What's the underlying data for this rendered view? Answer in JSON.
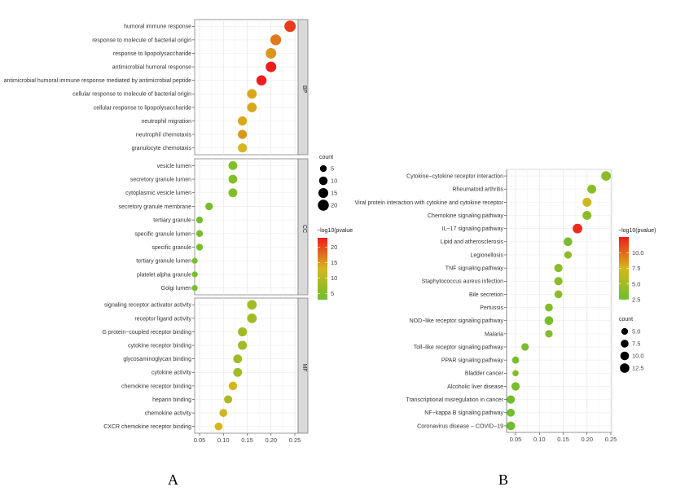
{
  "chart_data": [
    {
      "id": "A",
      "type": "scatter",
      "subtype": "dot-plot (GO enrichment)",
      "panel_label": "A",
      "xlabel": "",
      "ylabel": "",
      "xlim": [
        0.035,
        0.265
      ],
      "xticks": [
        0.05,
        0.1,
        0.15,
        0.2,
        0.25
      ],
      "xtick_labels": [
        "0.05",
        "0.10",
        "0.15",
        "0.20",
        "0.25"
      ],
      "grid": true,
      "facets": [
        {
          "name": "BP",
          "points": [
            {
              "term": "humoral immune response",
              "x": 0.24,
              "count": 22,
              "neglog10p": 21
            },
            {
              "term": "response to molecule of bacterial origin",
              "x": 0.21,
              "count": 19,
              "neglog10p": 17
            },
            {
              "term": "response to lipopolysaccharide",
              "x": 0.2,
              "count": 18,
              "neglog10p": 15
            },
            {
              "term": "antimicrobial humoral response",
              "x": 0.2,
              "count": 18,
              "neglog10p": 23
            },
            {
              "term": "antimicrobial humoral immune response mediated by antimicrobial peptide",
              "x": 0.18,
              "count": 16,
              "neglog10p": 23
            },
            {
              "term": "cellular response to molecule of bacterial origin",
              "x": 0.16,
              "count": 14,
              "neglog10p": 14
            },
            {
              "term": "cellular response to lipopolysaccharide",
              "x": 0.16,
              "count": 14,
              "neglog10p": 14
            },
            {
              "term": "neutrophil migration",
              "x": 0.14,
              "count": 12,
              "neglog10p": 14
            },
            {
              "term": "neutrophil chemotaxis",
              "x": 0.14,
              "count": 12,
              "neglog10p": 15
            },
            {
              "term": "granulocyte chemotaxis",
              "x": 0.14,
              "count": 12,
              "neglog10p": 13
            }
          ]
        },
        {
          "name": "CC",
          "points": [
            {
              "term": "vesicle lumen",
              "x": 0.12,
              "count": 11,
              "neglog10p": 5
            },
            {
              "term": "secretory granule lumen",
              "x": 0.12,
              "count": 11,
              "neglog10p": 5
            },
            {
              "term": "cytoplasmic vesicle lumen",
              "x": 0.12,
              "count": 11,
              "neglog10p": 5
            },
            {
              "term": "secretory granule membrane",
              "x": 0.07,
              "count": 7,
              "neglog10p": 4
            },
            {
              "term": "tertiary granule",
              "x": 0.05,
              "count": 5,
              "neglog10p": 4
            },
            {
              "term": "specific granule lumen",
              "x": 0.05,
              "count": 5,
              "neglog10p": 4
            },
            {
              "term": "specific granule",
              "x": 0.05,
              "count": 5,
              "neglog10p": 4
            },
            {
              "term": "tertiary granule lumen",
              "x": 0.04,
              "count": 3,
              "neglog10p": 4
            },
            {
              "term": "platelet alpha granule",
              "x": 0.04,
              "count": 3,
              "neglog10p": 4
            },
            {
              "term": "Golgi lumen",
              "x": 0.04,
              "count": 3,
              "neglog10p": 4
            }
          ]
        },
        {
          "name": "MF",
          "points": [
            {
              "term": "signaling receptor activator activity",
              "x": 0.16,
              "count": 14,
              "neglog10p": 8
            },
            {
              "term": "receptor ligand activity",
              "x": 0.16,
              "count": 14,
              "neglog10p": 8
            },
            {
              "term": "G protein−coupled receptor binding",
              "x": 0.14,
              "count": 12,
              "neglog10p": 8
            },
            {
              "term": "cytokine receptor binding",
              "x": 0.14,
              "count": 12,
              "neglog10p": 8
            },
            {
              "term": "glycosaminoglycan binding",
              "x": 0.13,
              "count": 11,
              "neglog10p": 8
            },
            {
              "term": "cytokine activity",
              "x": 0.13,
              "count": 11,
              "neglog10p": 8
            },
            {
              "term": "chemokine receptor binding",
              "x": 0.12,
              "count": 10,
              "neglog10p": 13
            },
            {
              "term": "heparin binding",
              "x": 0.11,
              "count": 9,
              "neglog10p": 9
            },
            {
              "term": "chemokine activity",
              "x": 0.1,
              "count": 8,
              "neglog10p": 12
            },
            {
              "term": "CXCR chemokine receptor binding",
              "x": 0.09,
              "count": 8,
              "neglog10p": 13
            }
          ]
        }
      ],
      "legend_size": {
        "title": "count",
        "values": [
          5,
          10,
          15,
          20
        ],
        "labels": [
          "5",
          "10",
          "15",
          "20"
        ],
        "position": "right"
      },
      "legend_color": {
        "title": "−log10(pvalue",
        "range": [
          3,
          23
        ],
        "ticks": [
          20,
          15,
          10,
          5
        ],
        "tick_labels": [
          "20",
          "15",
          "10",
          "5"
        ],
        "low_color": "#6dbf2e",
        "mid_color": "#d6b61c",
        "high_color": "#ee1c1c",
        "position": "right"
      }
    },
    {
      "id": "B",
      "type": "scatter",
      "subtype": "dot-plot (KEGG enrichment)",
      "panel_label": "B",
      "xlabel": "",
      "ylabel": "",
      "xlim": [
        0.035,
        0.25
      ],
      "xticks": [
        0.05,
        0.1,
        0.15,
        0.2,
        0.25
      ],
      "xtick_labels": [
        "0.05",
        "0.10",
        "0.15",
        "0.20",
        "0.25"
      ],
      "grid": true,
      "points": [
        {
          "term": "Cytokine−cytokine receptor interaction",
          "x": 0.24,
          "count": 13,
          "neglog10p": 4
        },
        {
          "term": "Rheumatoid arthritis",
          "x": 0.21,
          "count": 11,
          "neglog10p": 4
        },
        {
          "term": "Viral protein interaction with cytokine and cytokine receptor",
          "x": 0.2,
          "count": 11,
          "neglog10p": 7
        },
        {
          "term": "Chemokine signaling pathway",
          "x": 0.2,
          "count": 11,
          "neglog10p": 4
        },
        {
          "term": "IL−17 signaling pathway",
          "x": 0.18,
          "count": 13,
          "neglog10p": 12
        },
        {
          "term": "Lipid and atherosclerosis",
          "x": 0.16,
          "count": 10,
          "neglog10p": 3
        },
        {
          "term": "Legionellosis",
          "x": 0.16,
          "count": 7,
          "neglog10p": 4
        },
        {
          "term": "TNF signaling pathway",
          "x": 0.14,
          "count": 9,
          "neglog10p": 4
        },
        {
          "term": "Staphylococcus aureus infection",
          "x": 0.14,
          "count": 9,
          "neglog10p": 4
        },
        {
          "term": "Bile secretion",
          "x": 0.14,
          "count": 8,
          "neglog10p": 4
        },
        {
          "term": "Pertussis",
          "x": 0.12,
          "count": 8,
          "neglog10p": 3.5
        },
        {
          "term": "NOD−like receptor signaling pathway",
          "x": 0.12,
          "count": 10,
          "neglog10p": 3
        },
        {
          "term": "Malaria",
          "x": 0.12,
          "count": 7,
          "neglog10p": 3.5
        },
        {
          "term": "Toll−like receptor signaling pathway",
          "x": 0.07,
          "count": 7,
          "neglog10p": 3
        },
        {
          "term": "PPAR signaling pathway",
          "x": 0.05,
          "count": 6,
          "neglog10p": 3
        },
        {
          "term": "Bladder cancer",
          "x": 0.05,
          "count": 4,
          "neglog10p": 3.5
        },
        {
          "term": "Alcoholic liver disease",
          "x": 0.05,
          "count": 9,
          "neglog10p": 3
        },
        {
          "term": "Transcriptional misregulation in cancer",
          "x": 0.04,
          "count": 9,
          "neglog10p": 2.7
        },
        {
          "term": "NF−kappa B signaling pathway",
          "x": 0.04,
          "count": 8,
          "neglog10p": 2.7
        },
        {
          "term": "Coronavirus disease − COVID−19",
          "x": 0.04,
          "count": 10,
          "neglog10p": 2.6
        }
      ],
      "legend_color": {
        "title": "−log10(pvalue)",
        "range": [
          2.5,
          12.5
        ],
        "ticks": [
          10.0,
          7.5,
          5.0,
          2.5
        ],
        "tick_labels": [
          "10.0",
          "7.5",
          "5.0",
          "2.5"
        ],
        "low_color": "#6dbf2e",
        "mid_color": "#d6b61c",
        "high_color": "#ee1c1c",
        "position": "right"
      },
      "legend_size": {
        "title": "count",
        "values": [
          5.0,
          7.5,
          10.0,
          12.5
        ],
        "labels": [
          "5.0",
          "7.5",
          "10.0",
          "12.5"
        ],
        "position": "right"
      }
    }
  ],
  "panel_labels": {
    "a": "A",
    "b": "B"
  }
}
